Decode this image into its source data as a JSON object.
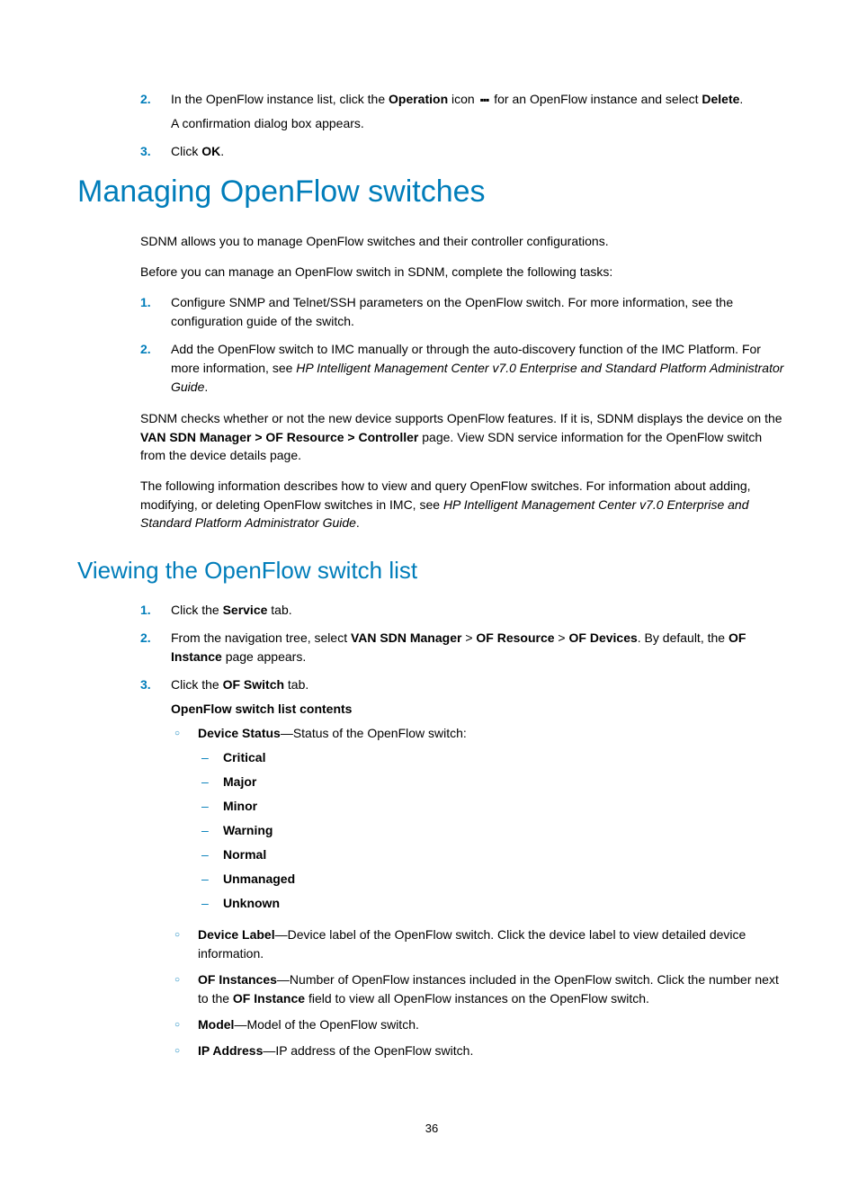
{
  "top_steps": {
    "s2": {
      "num": "2.",
      "pre": "In the OpenFlow instance list, click the ",
      "b1": "Operation",
      "mid": " icon ",
      "post": " for an OpenFlow instance and select ",
      "b2": "Delete",
      "end": ".",
      "sub": "A confirmation dialog box appears."
    },
    "s3": {
      "num": "3.",
      "pre": "Click ",
      "b1": "OK",
      "end": "."
    }
  },
  "h1": "Managing OpenFlow switches",
  "p1": "SDNM allows you to manage OpenFlow switches and their controller configurations.",
  "p2": "Before you can manage an OpenFlow switch in SDNM, complete the following tasks:",
  "mid_steps": {
    "s1": {
      "num": "1.",
      "text": "Configure SNMP and Telnet/SSH parameters on the OpenFlow switch. For more information, see the configuration guide of the switch."
    },
    "s2": {
      "num": "2.",
      "pre": "Add the OpenFlow switch to IMC manually or through the auto-discovery function of the IMC Platform. For more information, see ",
      "italic": "HP Intelligent Management Center v7.0 Enterprise and Standard Platform Administrator Guide",
      "end": "."
    }
  },
  "p3": {
    "pre": "SDNM checks whether or not the new device supports OpenFlow features. If it is, SDNM displays the device on the ",
    "b1": "VAN SDN Manager > OF Resource > Controller",
    "post": " page. View SDN service information for the OpenFlow switch from the device details page."
  },
  "p4": {
    "pre": "The following information describes how to view and query OpenFlow switches. For information about adding, modifying, or deleting OpenFlow switches in IMC, see ",
    "italic": "HP Intelligent Management Center v7.0 Enterprise and Standard Platform Administrator Guide",
    "end": "."
  },
  "h2": "Viewing the OpenFlow switch list",
  "view_steps": {
    "s1": {
      "num": "1.",
      "pre": "Click the ",
      "b1": "Service",
      "post": " tab."
    },
    "s2": {
      "num": "2.",
      "pre": "From the navigation tree, select ",
      "b1": "VAN SDN Manager",
      "sep1": " > ",
      "b2": "OF Resource",
      "sep2": " > ",
      "b3": "OF Devices",
      "mid": ". By default, the ",
      "b4": "OF Instance",
      "post": " page appears."
    },
    "s3": {
      "num": "3.",
      "pre": "Click the ",
      "b1": "OF Switch",
      "post": " tab.",
      "subtitle": "OpenFlow switch list contents"
    }
  },
  "contents": {
    "device_status": {
      "b": "Device Status",
      "t": "—Status of the OpenFlow switch:"
    },
    "statuses": [
      "Critical",
      "Major",
      "Minor",
      "Warning",
      "Normal",
      "Unmanaged",
      "Unknown"
    ],
    "device_label": {
      "b": "Device Label",
      "t": "—Device label of the OpenFlow switch. Click the device label to view detailed device information."
    },
    "of_instances": {
      "b": "OF Instances",
      "pre": "—Number of OpenFlow instances included in the OpenFlow switch. Click the number next to the ",
      "b2": "OF Instance",
      "post": " field to view all OpenFlow instances on the OpenFlow switch."
    },
    "model": {
      "b": "Model",
      "t": "—Model of the OpenFlow switch."
    },
    "ip": {
      "b": "IP Address",
      "t": "—IP address of the OpenFlow switch."
    }
  },
  "page_num": "36"
}
